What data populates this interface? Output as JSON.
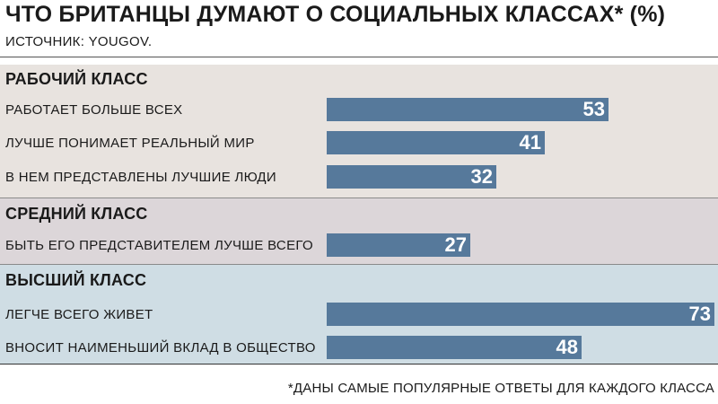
{
  "title": "ЧТО БРИТАНЦЫ ДУМАЮТ О СОЦИАЛЬНЫХ КЛАССАХ* (%)",
  "source": "ИСТОЧНИК: YOUGOV.",
  "footnote": "*ДАНЫ САМЫЕ ПОПУЛЯРНЫЕ ОТВЕТЫ ДЛЯ КАЖДОГО КЛАССА",
  "colors": {
    "bar": "#56799b",
    "working_bg": "#e8e3df",
    "middle_bg": "#dcd6d9",
    "upper_bg": "#cfdde4"
  },
  "chart_data": {
    "type": "bar",
    "orientation": "horizontal",
    "title": "ЧТО БРИТАНЦЫ ДУМАЮТ О СОЦИАЛЬНЫХ КЛАССАХ* (%)",
    "xlim": [
      0,
      73
    ],
    "groups": [
      {
        "name": "РАБОЧИЙ КЛАСС",
        "categories": [
          "РАБОТАЕТ БОЛЬШЕ ВСЕХ",
          "ЛУЧШЕ ПОНИМАЕТ РЕАЛЬНЫЙ МИР",
          "В НЕМ ПРЕДСТАВЛЕНЫ ЛУЧШИЕ ЛЮДИ"
        ],
        "values": [
          53,
          41,
          32
        ]
      },
      {
        "name": "СРЕДНИЙ КЛАСС",
        "categories": [
          "БЫТЬ ЕГО ПРЕДСТАВИТЕЛЕМ ЛУЧШЕ ВСЕГО"
        ],
        "values": [
          27
        ]
      },
      {
        "name": "ВЫСШИЙ КЛАСС",
        "categories": [
          "ЛЕГЧЕ ВСЕГО ЖИВЕТ",
          "ВНОСИТ НАИМЕНЬШИЙ ВКЛАД В ОБЩЕСТВО"
        ],
        "values": [
          73,
          48
        ]
      }
    ]
  }
}
